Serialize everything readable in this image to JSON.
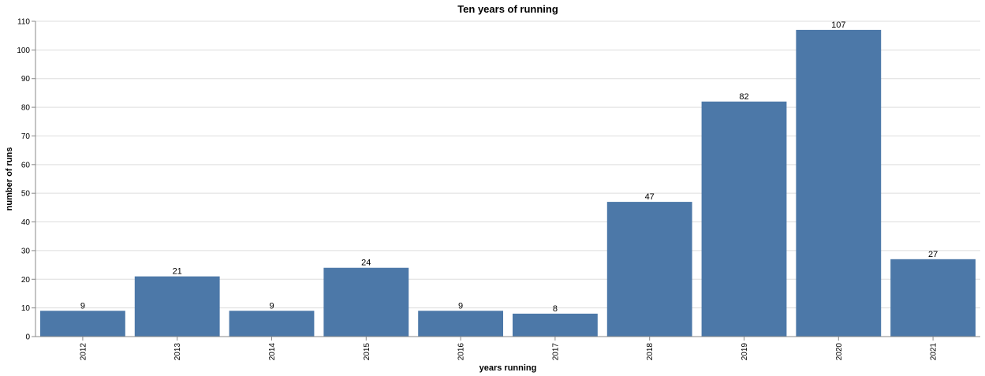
{
  "colors": {
    "bar": "#4c78a8",
    "grid": "#dddddd",
    "axis": "#888888"
  },
  "chart_data": {
    "type": "bar",
    "title": "Ten years of running",
    "xlabel": "years running",
    "ylabel": "number of runs",
    "categories": [
      "2012",
      "2013",
      "2014",
      "2015",
      "2016",
      "2017",
      "2018",
      "2019",
      "2020",
      "2021"
    ],
    "values": [
      9,
      21,
      9,
      24,
      9,
      8,
      47,
      82,
      107,
      27
    ],
    "ylim": [
      0,
      110
    ],
    "yticks": [
      0,
      10,
      20,
      30,
      40,
      50,
      60,
      70,
      80,
      90,
      100,
      110
    ],
    "grid": true,
    "data_labels": true
  }
}
